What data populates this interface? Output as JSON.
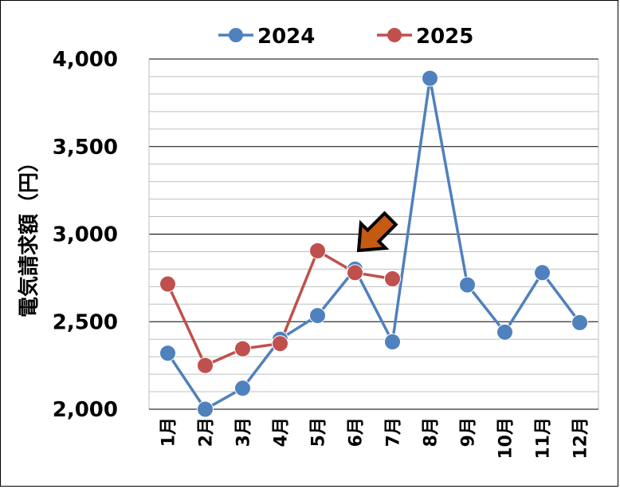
{
  "chart_data": {
    "type": "line",
    "categories": [
      "1月",
      "2月",
      "3月",
      "4月",
      "5月",
      "6月",
      "7月",
      "8月",
      "9月",
      "10月",
      "11月",
      "12月"
    ],
    "series": [
      {
        "name": "2024",
        "color": "#4f81bd",
        "values": [
          2320,
          2000,
          2120,
          2400,
          2535,
          2800,
          2385,
          3890,
          2710,
          2440,
          2780,
          2495
        ]
      },
      {
        "name": "2025",
        "color": "#c0504d",
        "values": [
          2715,
          2250,
          2345,
          2375,
          2905,
          2780,
          2745,
          null,
          null,
          null,
          null,
          null
        ]
      }
    ],
    "ylabel": "電気請求額（円）",
    "ylim": [
      2000,
      4000
    ],
    "yticks": [
      2000,
      2500,
      3000,
      3500,
      4000
    ],
    "ytick_labels": [
      "2,000",
      "2,500",
      "3,000",
      "3,500",
      "4,000"
    ],
    "grid": true,
    "legend": "top-center",
    "annotation": {
      "type": "arrow",
      "icon": "down-right-arrow-icon",
      "color": "#c55a11",
      "points_to": "7月"
    }
  }
}
